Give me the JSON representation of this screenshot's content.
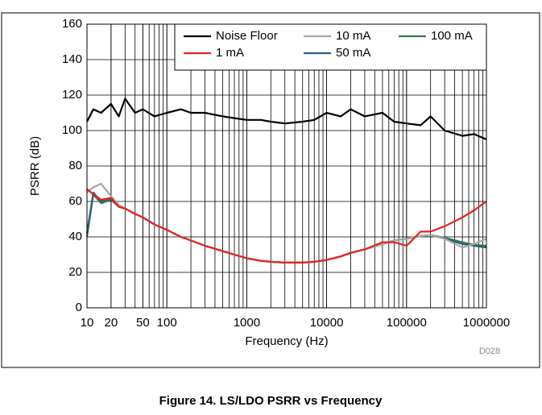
{
  "chart_data": {
    "type": "line",
    "caption": "Figure 14. LS/LDO PSRR vs Frequency",
    "xlabel": "Frequency (Hz)",
    "ylabel": "PSRR (dB)",
    "note": "D028",
    "log_x": true,
    "grid": true,
    "x": [
      10,
      12,
      15,
      20,
      25,
      30,
      40,
      50,
      70,
      100,
      150,
      200,
      300,
      500,
      700,
      1000,
      1500,
      2000,
      3000,
      5000,
      7000,
      10000,
      15000,
      20000,
      30000,
      50000,
      70000,
      100000,
      150000,
      200000,
      300000,
      500000,
      700000,
      1000000
    ],
    "series": [
      {
        "name": "Noise Floor",
        "color": "#000000",
        "values": [
          105,
          112,
          110,
          115,
          108,
          118,
          110,
          112,
          108,
          110,
          112,
          110,
          110,
          108,
          107,
          106,
          106,
          105,
          104,
          105,
          106,
          110,
          108,
          112,
          108,
          110,
          105,
          104,
          103,
          108,
          100,
          97,
          98,
          95
        ]
      },
      {
        "name": "1 mA",
        "color": "#e8201e",
        "values": [
          67,
          64,
          61,
          62,
          57,
          56,
          53,
          51,
          47,
          44,
          40,
          38,
          35,
          32,
          30,
          28,
          26.5,
          26,
          25.5,
          25.5,
          26,
          27,
          29,
          31,
          33,
          37,
          37,
          35,
          43,
          43,
          46,
          51,
          55,
          60
        ]
      },
      {
        "name": "10 mA",
        "color": "#a6a6a6",
        "values": [
          65,
          68,
          70,
          63,
          58,
          56,
          53,
          51,
          47,
          44,
          40,
          38,
          35,
          32,
          30,
          28,
          26.5,
          26,
          25.5,
          25.5,
          26,
          27,
          29,
          31,
          33,
          36,
          38,
          39,
          40.5,
          41,
          39,
          34,
          36,
          39
        ]
      },
      {
        "name": "50 mA",
        "color": "#2c5f80",
        "values": [
          42,
          65,
          60,
          62,
          57,
          56,
          53,
          51,
          47,
          44,
          40,
          38,
          35,
          32,
          30,
          28,
          26.5,
          26,
          25.5,
          25.5,
          26,
          27,
          29,
          31,
          33,
          36,
          38,
          39,
          40.5,
          41,
          39,
          36,
          35,
          34
        ]
      },
      {
        "name": "100 mA",
        "color": "#2e7a4c",
        "values": [
          40,
          64,
          59,
          61,
          57,
          56,
          53,
          51,
          47,
          44,
          40,
          38,
          35,
          32,
          30,
          28,
          26.5,
          26,
          25.5,
          25.5,
          26,
          27,
          29,
          31,
          33,
          36,
          38,
          39,
          40.5,
          41,
          39.5,
          37,
          35.5,
          35
        ]
      }
    ],
    "xlim": [
      10,
      1000000
    ],
    "xticks": [
      10,
      20,
      50,
      100,
      1000,
      10000,
      100000,
      1000000
    ],
    "ylim": [
      0,
      160
    ],
    "yticks": [
      0,
      20,
      40,
      60,
      80,
      100,
      120,
      140,
      160
    ]
  }
}
